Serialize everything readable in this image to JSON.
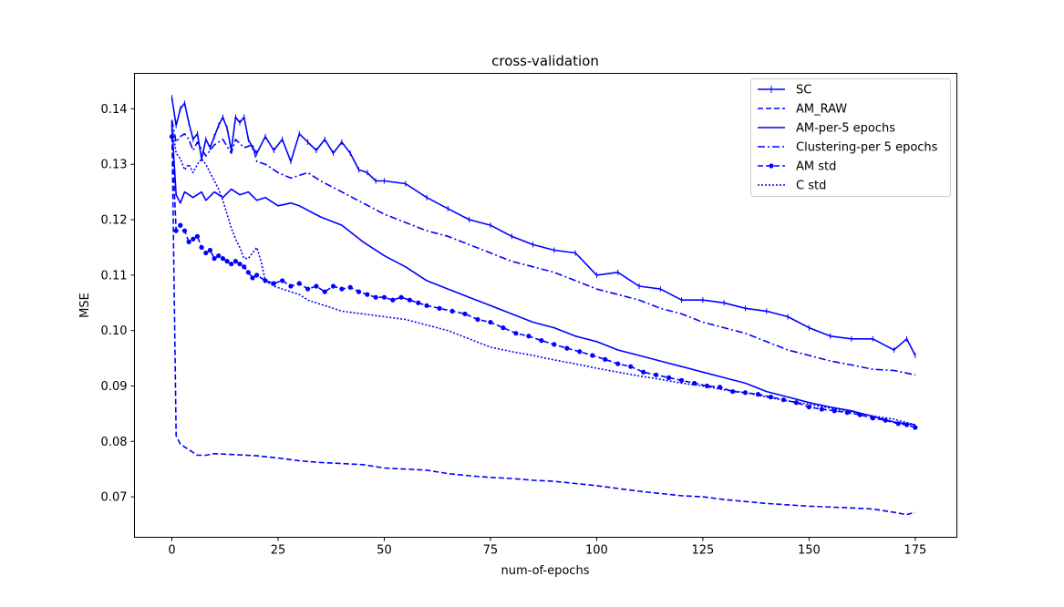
{
  "chart_data": {
    "type": "line",
    "title": "cross-validation",
    "xlabel": "num-of-epochs",
    "ylabel": "MSE",
    "xlim": [
      -8.8,
      184.8
    ],
    "ylim": [
      0.0627,
      0.1464
    ],
    "xticks": [
      0,
      25,
      50,
      75,
      100,
      125,
      150,
      175
    ],
    "xtick_labels": [
      "0",
      "25",
      "50",
      "75",
      "100",
      "125",
      "150",
      "175"
    ],
    "yticks": [
      0.07,
      0.08,
      0.09,
      0.1,
      0.11,
      0.12,
      0.13,
      0.14
    ],
    "ytick_labels": [
      "0.07",
      "0.08",
      "0.09",
      "0.10",
      "0.11",
      "0.12",
      "0.13",
      "0.14"
    ],
    "grid": false,
    "legend_position": "upper right",
    "color": "#0000ff",
    "series": [
      {
        "name": "SC",
        "style": "solid",
        "marker": "plus",
        "x": [
          0,
          1,
          2,
          3,
          4,
          5,
          6,
          7,
          8,
          9,
          10,
          11,
          12,
          13,
          14,
          15,
          16,
          17,
          18,
          19,
          20,
          22,
          24,
          26,
          28,
          30,
          32,
          34,
          36,
          38,
          40,
          42,
          44,
          46,
          48,
          50,
          55,
          60,
          65,
          70,
          75,
          80,
          85,
          90,
          95,
          100,
          105,
          110,
          115,
          120,
          125,
          130,
          135,
          140,
          145,
          150,
          155,
          160,
          165,
          170,
          173,
          175
        ],
        "y": [
          0.142,
          0.137,
          0.14,
          0.141,
          0.1375,
          0.1345,
          0.1355,
          0.131,
          0.1345,
          0.133,
          0.135,
          0.137,
          0.1385,
          0.1365,
          0.1325,
          0.1385,
          0.1375,
          0.1385,
          0.1345,
          0.133,
          0.132,
          0.135,
          0.1325,
          0.1345,
          0.1305,
          0.1355,
          0.134,
          0.1325,
          0.1345,
          0.132,
          0.134,
          0.132,
          0.129,
          0.1285,
          0.127,
          0.127,
          0.1265,
          0.124,
          0.122,
          0.12,
          0.119,
          0.117,
          0.1155,
          0.1145,
          0.114,
          0.11,
          0.1105,
          0.108,
          0.1075,
          0.1055,
          0.1055,
          0.105,
          0.104,
          0.1035,
          0.1025,
          0.1005,
          0.099,
          0.0985,
          0.0985,
          0.0965,
          0.0985,
          0.0955
        ]
      },
      {
        "name": "AM_RAW",
        "style": "dashed",
        "marker": "none",
        "x": [
          0,
          1,
          2,
          4,
          6,
          8,
          10,
          15,
          20,
          25,
          30,
          35,
          40,
          45,
          50,
          55,
          60,
          65,
          70,
          75,
          80,
          85,
          90,
          95,
          100,
          110,
          120,
          125,
          130,
          140,
          150,
          160,
          165,
          170,
          173,
          175
        ],
        "y": [
          0.138,
          0.081,
          0.0795,
          0.0785,
          0.0775,
          0.0775,
          0.0778,
          0.0776,
          0.0774,
          0.077,
          0.0765,
          0.0762,
          0.076,
          0.0758,
          0.0752,
          0.075,
          0.0748,
          0.0742,
          0.0738,
          0.0735,
          0.0733,
          0.073,
          0.0728,
          0.0724,
          0.072,
          0.071,
          0.0702,
          0.07,
          0.0695,
          0.0688,
          0.0683,
          0.068,
          0.0678,
          0.0672,
          0.0668,
          0.0672
        ]
      },
      {
        "name": "AM-per-5 epochs",
        "style": "solid",
        "marker": "none",
        "x": [
          0,
          1,
          2,
          3,
          5,
          7,
          8,
          10,
          12,
          14,
          16,
          18,
          20,
          22,
          25,
          28,
          30,
          35,
          40,
          45,
          50,
          55,
          60,
          65,
          70,
          75,
          80,
          85,
          90,
          95,
          100,
          105,
          110,
          115,
          120,
          125,
          130,
          135,
          140,
          145,
          150,
          155,
          160,
          165,
          170,
          175
        ],
        "y": [
          0.137,
          0.1245,
          0.123,
          0.125,
          0.124,
          0.125,
          0.1235,
          0.125,
          0.124,
          0.1255,
          0.1245,
          0.125,
          0.1235,
          0.124,
          0.1225,
          0.123,
          0.1225,
          0.1205,
          0.119,
          0.116,
          0.1135,
          0.1115,
          0.109,
          0.1075,
          0.106,
          0.1045,
          0.103,
          0.1015,
          0.1005,
          0.099,
          0.098,
          0.0965,
          0.0955,
          0.0945,
          0.0935,
          0.0925,
          0.0915,
          0.0905,
          0.089,
          0.088,
          0.087,
          0.0862,
          0.0855,
          0.0845,
          0.0835,
          0.083
        ]
      },
      {
        "name": "Clustering-per 5 epochs",
        "style": "dashdot",
        "marker": "none",
        "x": [
          0,
          1,
          2,
          3,
          4,
          5,
          6,
          8,
          10,
          12,
          14,
          15,
          17,
          19,
          20,
          22,
          25,
          28,
          30,
          32,
          35,
          40,
          45,
          50,
          55,
          60,
          65,
          70,
          75,
          80,
          85,
          90,
          95,
          100,
          105,
          110,
          115,
          120,
          125,
          130,
          135,
          140,
          145,
          150,
          155,
          160,
          165,
          170,
          175
        ],
        "y": [
          0.138,
          0.134,
          0.135,
          0.1355,
          0.1345,
          0.1325,
          0.134,
          0.1315,
          0.1335,
          0.1345,
          0.132,
          0.1345,
          0.133,
          0.1335,
          0.1305,
          0.13,
          0.1285,
          0.1275,
          0.128,
          0.1285,
          0.127,
          0.125,
          0.123,
          0.121,
          0.1195,
          0.118,
          0.117,
          0.1155,
          0.114,
          0.1125,
          0.1115,
          0.1105,
          0.109,
          0.1075,
          0.1065,
          0.1055,
          0.104,
          0.103,
          0.1015,
          0.1005,
          0.0995,
          0.098,
          0.0965,
          0.0955,
          0.0945,
          0.0938,
          0.093,
          0.0928,
          0.092
        ]
      },
      {
        "name": "AM std",
        "style": "dashed",
        "marker": "circle",
        "x": [
          0,
          1,
          2,
          3,
          4,
          5,
          6,
          7,
          8,
          9,
          10,
          11,
          12,
          13,
          14,
          15,
          16,
          17,
          18,
          19,
          20,
          22,
          24,
          26,
          28,
          30,
          32,
          34,
          36,
          38,
          40,
          42,
          44,
          46,
          48,
          50,
          52,
          54,
          56,
          58,
          60,
          63,
          66,
          69,
          72,
          75,
          78,
          81,
          84,
          87,
          90,
          93,
          96,
          99,
          102,
          105,
          108,
          111,
          114,
          117,
          120,
          123,
          126,
          129,
          132,
          135,
          138,
          141,
          144,
          147,
          150,
          153,
          156,
          159,
          162,
          165,
          168,
          171,
          173,
          175
        ],
        "y": [
          0.135,
          0.118,
          0.119,
          0.118,
          0.116,
          0.1165,
          0.117,
          0.115,
          0.114,
          0.1145,
          0.113,
          0.1135,
          0.113,
          0.1125,
          0.112,
          0.1125,
          0.112,
          0.1115,
          0.1105,
          0.1095,
          0.11,
          0.109,
          0.1085,
          0.109,
          0.108,
          0.1085,
          0.1075,
          0.108,
          0.107,
          0.108,
          0.1075,
          0.1078,
          0.107,
          0.1065,
          0.106,
          0.106,
          0.1055,
          0.106,
          0.1055,
          0.105,
          0.1045,
          0.104,
          0.1035,
          0.103,
          0.102,
          0.1015,
          0.1005,
          0.0995,
          0.099,
          0.0982,
          0.0975,
          0.0968,
          0.0962,
          0.0955,
          0.0948,
          0.094,
          0.0935,
          0.0925,
          0.092,
          0.0915,
          0.091,
          0.0905,
          0.09,
          0.0898,
          0.089,
          0.0888,
          0.0885,
          0.088,
          0.0875,
          0.087,
          0.0862,
          0.0858,
          0.0855,
          0.0852,
          0.0848,
          0.0842,
          0.0838,
          0.0832,
          0.083,
          0.0825
        ]
      },
      {
        "name": "C std",
        "style": "dotted",
        "marker": "none",
        "x": [
          0,
          1,
          2,
          3,
          4,
          5,
          6,
          7,
          8,
          9,
          10,
          11,
          12,
          13,
          14,
          15,
          16,
          17,
          18,
          19,
          20,
          21,
          22,
          24,
          26,
          28,
          30,
          32,
          34,
          36,
          38,
          40,
          45,
          50,
          55,
          60,
          65,
          70,
          75,
          80,
          85,
          90,
          95,
          100,
          105,
          110,
          115,
          120,
          125,
          130,
          135,
          140,
          145,
          150,
          155,
          160,
          165,
          170,
          175
        ],
        "y": [
          0.137,
          0.132,
          0.131,
          0.129,
          0.13,
          0.1285,
          0.13,
          0.131,
          0.13,
          0.1285,
          0.127,
          0.1255,
          0.1235,
          0.121,
          0.1185,
          0.1165,
          0.115,
          0.113,
          0.113,
          0.114,
          0.115,
          0.1125,
          0.109,
          0.108,
          0.1075,
          0.107,
          0.1065,
          0.1055,
          0.105,
          0.1045,
          0.104,
          0.1035,
          0.103,
          0.1025,
          0.102,
          0.101,
          0.1,
          0.0985,
          0.097,
          0.0962,
          0.0955,
          0.0947,
          0.094,
          0.0932,
          0.0925,
          0.0918,
          0.0912,
          0.0905,
          0.09,
          0.0893,
          0.0888,
          0.088,
          0.0873,
          0.0867,
          0.086,
          0.0853,
          0.0846,
          0.084,
          0.083
        ]
      }
    ]
  }
}
